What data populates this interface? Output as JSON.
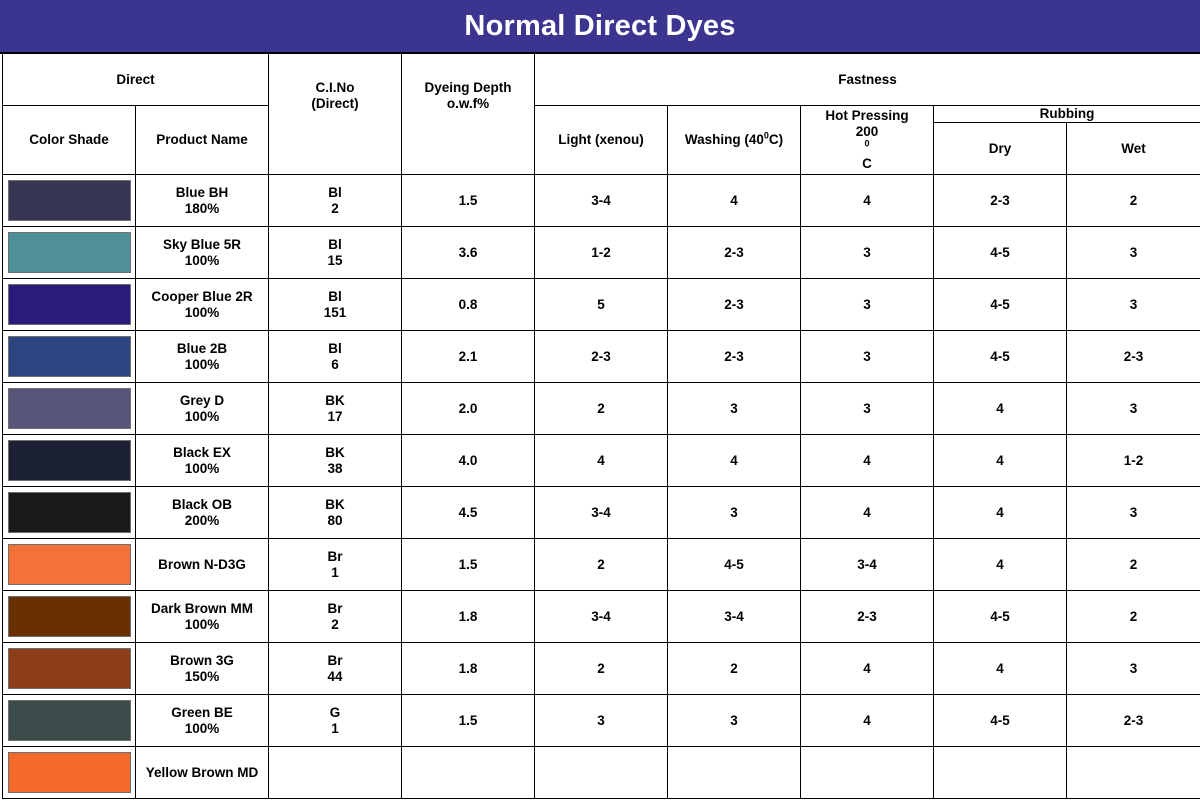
{
  "title": "Normal Direct Dyes",
  "headers": {
    "direct": "Direct",
    "color_shade": "Color Shade",
    "product_name": "Product Name",
    "ci_no_line1": "C.I.No",
    "ci_no_line2": "(Direct)",
    "depth_line1": "Dyeing Depth",
    "depth_line2": "o.w.f%",
    "fastness": "Fastness",
    "light": "Light (xenou)",
    "washing_prefix": "Washing (40",
    "washing_sup": "0",
    "washing_suffix": "C)",
    "hot_line1": "Hot Pressing",
    "hot_line2_prefix": "200",
    "hot_line2_sup": "0",
    "hot_line2_suffix": "C",
    "rubbing": "Rubbing",
    "dry": "Dry",
    "wet": "Wet"
  },
  "rows": [
    {
      "color": "#363654",
      "name": "Blue BH",
      "strength": "180%",
      "ci_code": "Bl",
      "ci_num": "2",
      "depth": "1.5",
      "light": "3-4",
      "washing": "4",
      "hot": "4",
      "dry": "2-3",
      "wet": "2"
    },
    {
      "color": "#4f9098",
      "name": "Sky Blue 5R",
      "strength": "100%",
      "ci_code": "Bl",
      "ci_num": "15",
      "depth": "3.6",
      "light": "1-2",
      "washing": "2-3",
      "hot": "3",
      "dry": "4-5",
      "wet": "3"
    },
    {
      "color": "#2a1a7c",
      "name": "Cooper Blue 2R",
      "strength": "100%",
      "ci_code": "Bl",
      "ci_num": "151",
      "depth": "0.8",
      "light": "5",
      "washing": "2-3",
      "hot": "3",
      "dry": "4-5",
      "wet": "3"
    },
    {
      "color": "#2c4580",
      "name": "Blue 2B",
      "strength": "100%",
      "ci_code": "Bl",
      "ci_num": "6",
      "depth": "2.1",
      "light": "2-3",
      "washing": "2-3",
      "hot": "3",
      "dry": "4-5",
      "wet": "2-3"
    },
    {
      "color": "#575479",
      "name": "Grey D",
      "strength": "100%",
      "ci_code": "BK",
      "ci_num": "17",
      "depth": "2.0",
      "light": "2",
      "washing": "3",
      "hot": "3",
      "dry": "4",
      "wet": "3"
    },
    {
      "color": "#1b2032",
      "name": "Black EX",
      "strength": "100%",
      "ci_code": "BK",
      "ci_num": "38",
      "depth": "4.0",
      "light": "4",
      "washing": "4",
      "hot": "4",
      "dry": "4",
      "wet": "1-2"
    },
    {
      "color": "#181a1c",
      "name": "Black OB",
      "strength": "200%",
      "ci_code": "BK",
      "ci_num": "80",
      "depth": "4.5",
      "light": "3-4",
      "washing": "3",
      "hot": "4",
      "dry": "4",
      "wet": "3"
    },
    {
      "color": "#f47237",
      "name": "Brown N-D3G",
      "strength": "",
      "ci_code": "Br",
      "ci_num": "1",
      "depth": "1.5",
      "light": "2",
      "washing": "4-5",
      "hot": "3-4",
      "dry": "4",
      "wet": "2"
    },
    {
      "color": "#693000",
      "name": "Dark Brown MM",
      "strength": "100%",
      "ci_code": "Br",
      "ci_num": "2",
      "depth": "1.8",
      "light": "3-4",
      "washing": "3-4",
      "hot": "2-3",
      "dry": "4-5",
      "wet": "2"
    },
    {
      "color": "#8c3e18",
      "name": "Brown 3G",
      "strength": "150%",
      "ci_code": "Br",
      "ci_num": "44",
      "depth": "1.8",
      "light": "2",
      "washing": "2",
      "hot": "4",
      "dry": "4",
      "wet": "3"
    },
    {
      "color": "#3a4b49",
      "name": "Green BE",
      "strength": "100%",
      "ci_code": "G",
      "ci_num": "1",
      "depth": "1.5",
      "light": "3",
      "washing": "3",
      "hot": "4",
      "dry": "4-5",
      "wet": "2-3"
    },
    {
      "color": "#f36a2c",
      "name": "Yellow Brown MD",
      "strength": "",
      "ci_code": "",
      "ci_num": "",
      "depth": "",
      "light": "",
      "washing": "",
      "hot": "",
      "dry": "",
      "wet": ""
    }
  ]
}
